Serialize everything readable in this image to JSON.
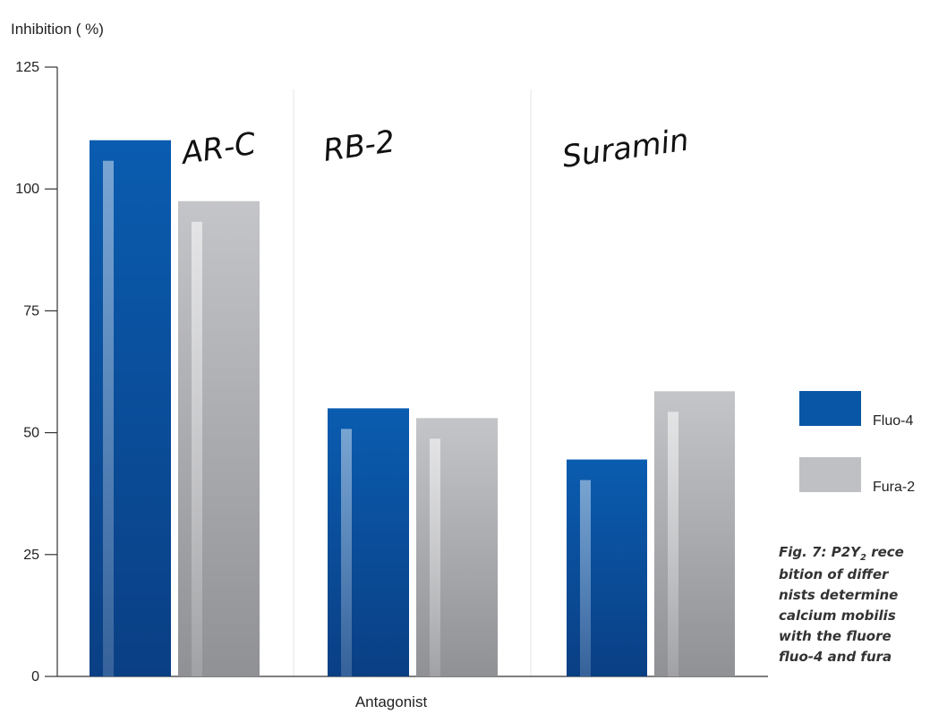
{
  "chart_data": {
    "type": "bar",
    "ylabel": "Inhibition ( %)",
    "xlabel": "Antagonist",
    "ylim": [
      0,
      125
    ],
    "yticks": [
      "0",
      "25",
      "50",
      "75",
      "100",
      "125"
    ],
    "categories": [
      "AR-C",
      "RB-2",
      "Suramin"
    ],
    "series": [
      {
        "name": "Fluo-4",
        "values": [
          110,
          55,
          44.5
        ],
        "color": "#0a53a0"
      },
      {
        "name": "Fura-2",
        "values": [
          97.5,
          53,
          58.5
        ],
        "color": "#a9aaad"
      }
    ],
    "legend_position": "right",
    "grid": false
  },
  "caption": {
    "line1_a": "Fig. 7: P2Y",
    "line1_sub": "2",
    "line1_b": " rece",
    "line2": "bition of differ",
    "line3": "nists determine",
    "line4": "calcium mobilis",
    "line5": "with the fluore",
    "line6": "fluo-4 and fura"
  }
}
